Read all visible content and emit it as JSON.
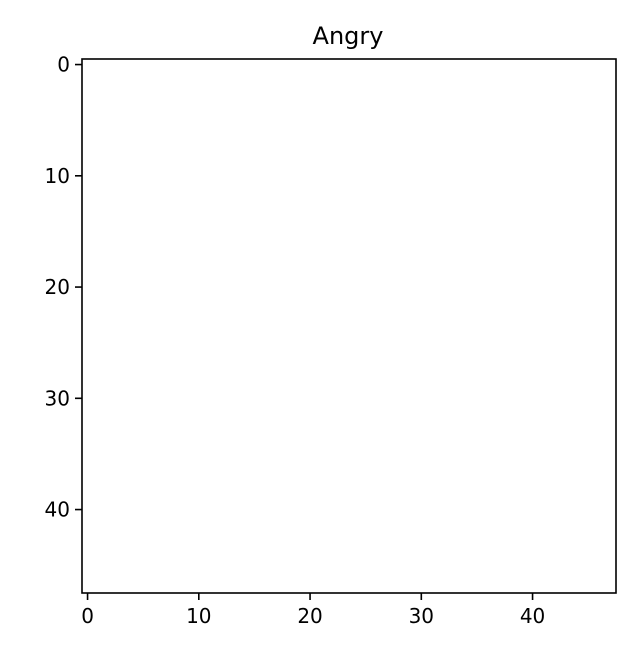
{
  "chart_data": {
    "type": "heatmap",
    "title": "Angry",
    "xlabel": "",
    "ylabel": "",
    "colormap": "gray",
    "image_width": 48,
    "image_height": 48,
    "xlim": [
      -0.5,
      47.5
    ],
    "ylim": [
      47.5,
      -0.5
    ],
    "x_ticks": [
      0,
      10,
      20,
      30,
      40
    ],
    "x_tick_labels": [
      "0",
      "10",
      "20",
      "30",
      "40"
    ],
    "y_ticks": [
      0,
      10,
      20,
      30,
      40
    ],
    "y_tick_labels": [
      "0",
      "10",
      "20",
      "30",
      "40"
    ],
    "grid": false,
    "legend": "none"
  }
}
